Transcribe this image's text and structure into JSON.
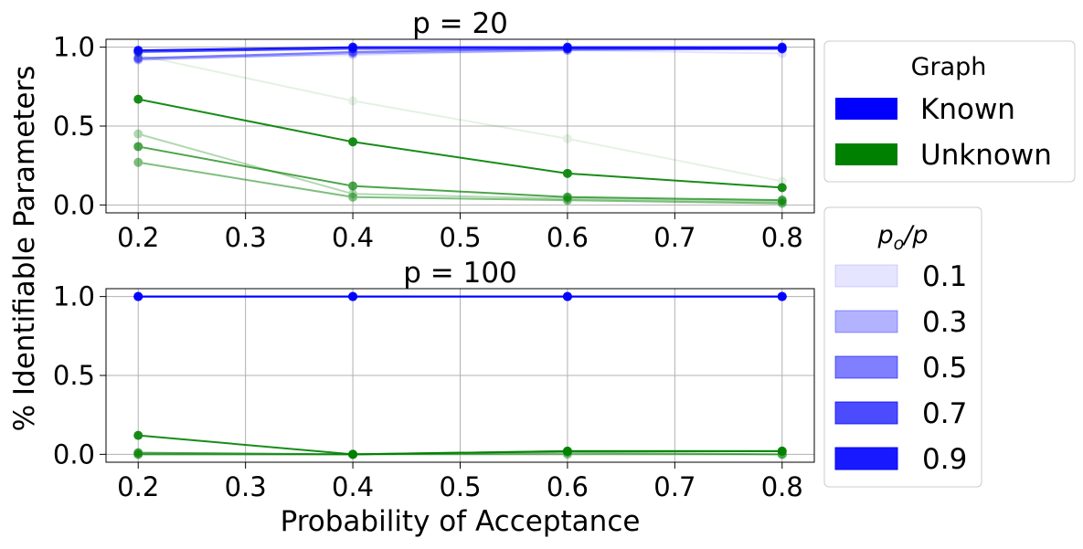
{
  "ylabel_shared": "% Identifiable Parameters",
  "chart_data": [
    {
      "type": "line",
      "title": "p = 20",
      "xlabel": "",
      "ylabel": "",
      "x": [
        0.2,
        0.4,
        0.6,
        0.8
      ],
      "xticks": [
        0.2,
        0.3,
        0.4,
        0.5,
        0.6,
        0.7,
        0.8
      ],
      "yticks": [
        0.0,
        0.5,
        1.0
      ],
      "xlim": [
        0.17,
        0.83
      ],
      "ylim": [
        -0.05,
        1.05
      ],
      "grid": true,
      "series": [
        {
          "graph": "Known",
          "po_over_p": 0.1,
          "values": [
            0.93,
            0.95,
            0.98,
            0.96
          ]
        },
        {
          "graph": "Known",
          "po_over_p": 0.3,
          "values": [
            0.92,
            0.96,
            0.98,
            0.99
          ]
        },
        {
          "graph": "Known",
          "po_over_p": 0.5,
          "values": [
            0.93,
            0.97,
            0.99,
            0.99
          ]
        },
        {
          "graph": "Known",
          "po_over_p": 0.7,
          "values": [
            0.97,
            0.99,
            0.99,
            0.99
          ]
        },
        {
          "graph": "Known",
          "po_over_p": 0.9,
          "values": [
            0.98,
            1.0,
            1.0,
            1.0
          ]
        },
        {
          "graph": "Unknown",
          "po_over_p": 0.1,
          "values": [
            0.95,
            0.66,
            0.42,
            0.15
          ]
        },
        {
          "graph": "Unknown",
          "po_over_p": 0.3,
          "values": [
            0.45,
            0.07,
            0.04,
            0.02
          ]
        },
        {
          "graph": "Unknown",
          "po_over_p": 0.5,
          "values": [
            0.27,
            0.05,
            0.03,
            0.01
          ]
        },
        {
          "graph": "Unknown",
          "po_over_p": 0.7,
          "values": [
            0.37,
            0.12,
            0.05,
            0.03
          ]
        },
        {
          "graph": "Unknown",
          "po_over_p": 0.9,
          "values": [
            0.67,
            0.4,
            0.2,
            0.11
          ]
        }
      ]
    },
    {
      "type": "line",
      "title": "p = 100",
      "xlabel": "Probability of Acceptance",
      "ylabel": "",
      "x": [
        0.2,
        0.4,
        0.6,
        0.8
      ],
      "xticks": [
        0.2,
        0.3,
        0.4,
        0.5,
        0.6,
        0.7,
        0.8
      ],
      "yticks": [
        0.0,
        0.5,
        1.0
      ],
      "xlim": [
        0.17,
        0.83
      ],
      "ylim": [
        -0.05,
        1.05
      ],
      "grid": true,
      "series": [
        {
          "graph": "Known",
          "po_over_p": 0.1,
          "values": [
            1.0,
            1.0,
            1.0,
            1.0
          ]
        },
        {
          "graph": "Known",
          "po_over_p": 0.3,
          "values": [
            1.0,
            1.0,
            1.0,
            1.0
          ]
        },
        {
          "graph": "Known",
          "po_over_p": 0.5,
          "values": [
            1.0,
            1.0,
            1.0,
            1.0
          ]
        },
        {
          "graph": "Known",
          "po_over_p": 0.7,
          "values": [
            1.0,
            1.0,
            1.0,
            1.0
          ]
        },
        {
          "graph": "Known",
          "po_over_p": 0.9,
          "values": [
            1.0,
            1.0,
            1.0,
            1.0
          ]
        },
        {
          "graph": "Unknown",
          "po_over_p": 0.1,
          "values": [
            0.0,
            0.0,
            0.0,
            0.0
          ]
        },
        {
          "graph": "Unknown",
          "po_over_p": 0.3,
          "values": [
            0.0,
            0.0,
            0.0,
            0.0
          ]
        },
        {
          "graph": "Unknown",
          "po_over_p": 0.5,
          "values": [
            0.0,
            0.0,
            0.01,
            0.0
          ]
        },
        {
          "graph": "Unknown",
          "po_over_p": 0.7,
          "values": [
            0.01,
            0.0,
            0.02,
            0.02
          ]
        },
        {
          "graph": "Unknown",
          "po_over_p": 0.9,
          "values": [
            0.12,
            0.0,
            0.02,
            0.02
          ]
        }
      ]
    }
  ],
  "legend_graph": {
    "title": "Graph",
    "entries": [
      {
        "label": "Known",
        "color": "#0000ff"
      },
      {
        "label": "Unknown",
        "color": "#008000"
      }
    ]
  },
  "legend_ratio": {
    "title_main": "p",
    "title_sub": "o",
    "title_tail": "/p",
    "entries": [
      {
        "label": "0.1",
        "alpha": 0.1
      },
      {
        "label": "0.3",
        "alpha": 0.3
      },
      {
        "label": "0.5",
        "alpha": 0.5
      },
      {
        "label": "0.7",
        "alpha": 0.7
      },
      {
        "label": "0.9",
        "alpha": 0.9
      }
    ]
  },
  "colors": {
    "known": "#0000ff",
    "unknown": "#008000",
    "grid": "#b0b0b0",
    "legend_border": "#cccccc"
  }
}
